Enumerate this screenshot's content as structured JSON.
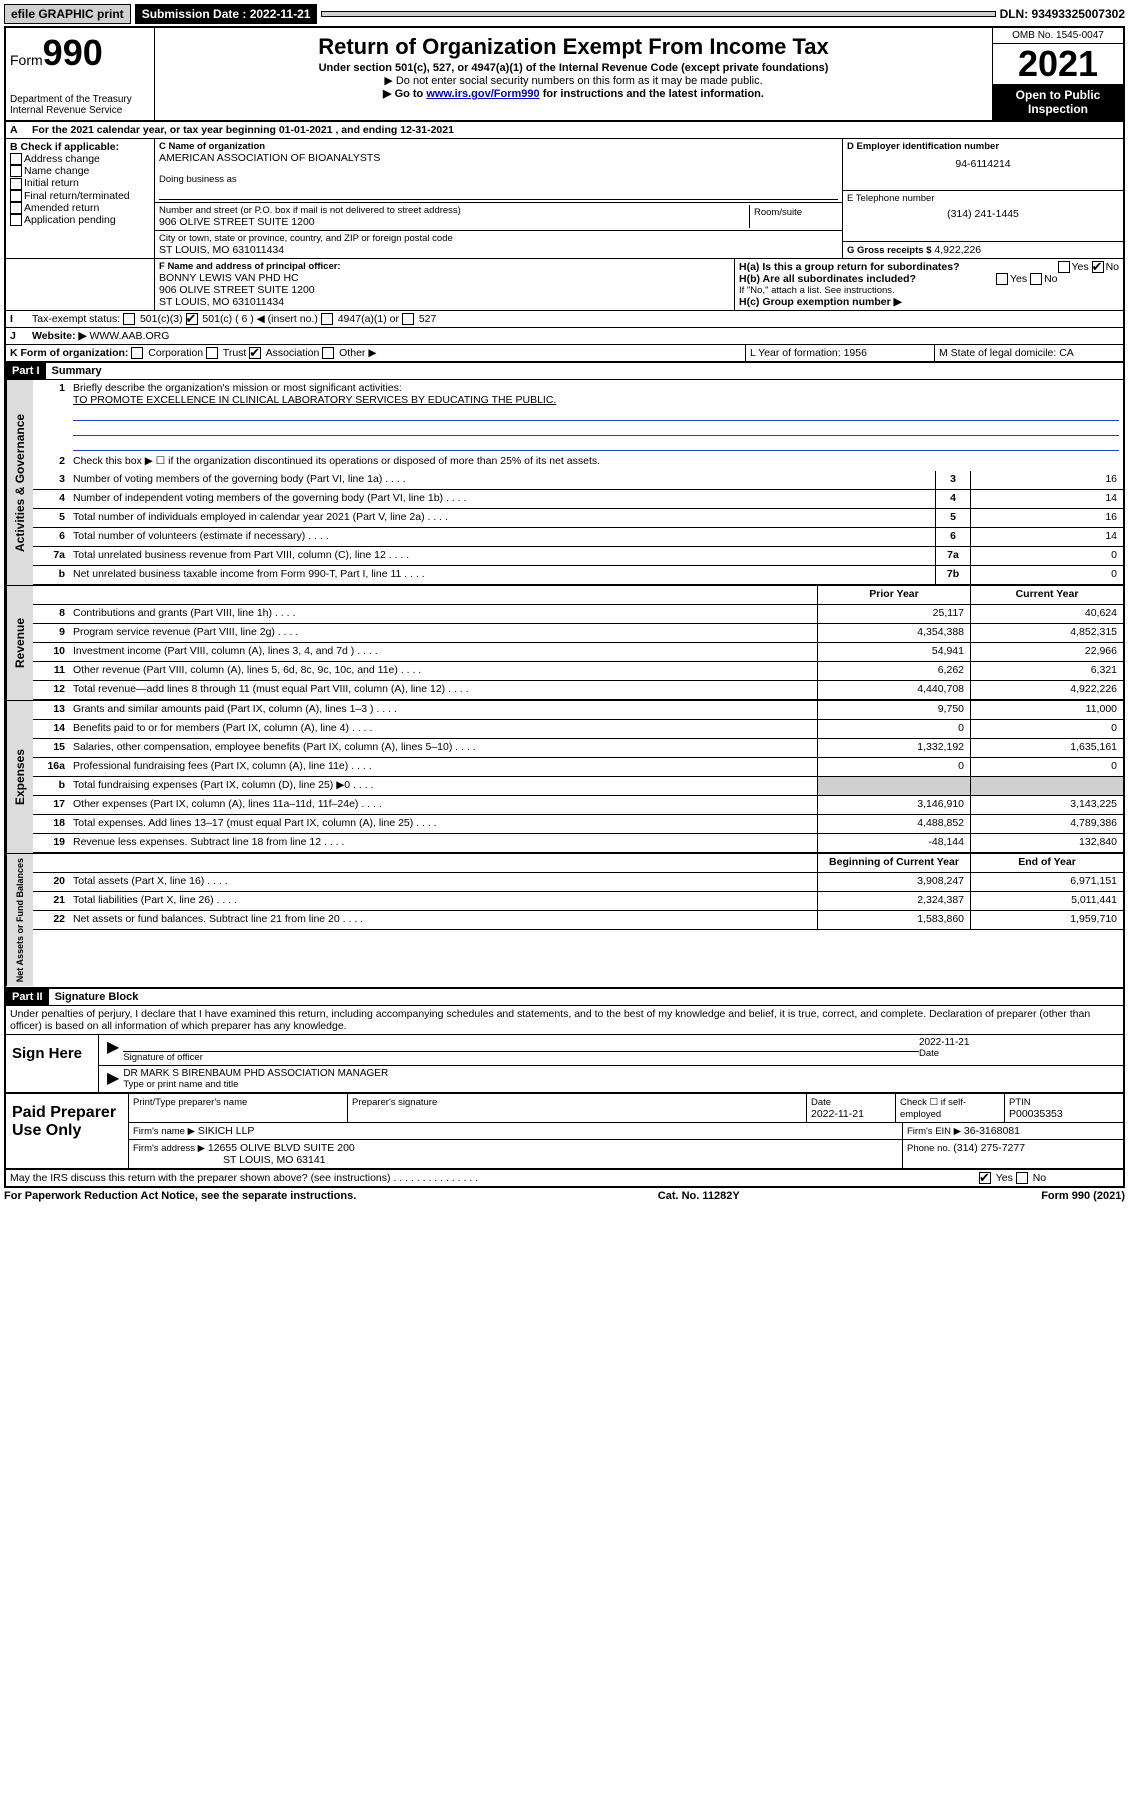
{
  "topbar": {
    "efile": "efile GRAPHIC print",
    "submission_label": "Submission Date : 2022-11-21",
    "dln": "DLN: 93493325007302"
  },
  "header": {
    "form_label": "Form",
    "form_number": "990",
    "dept": "Department of the Treasury",
    "irs": "Internal Revenue Service",
    "title": "Return of Organization Exempt From Income Tax",
    "subtitle": "Under section 501(c), 527, or 4947(a)(1) of the Internal Revenue Code (except private foundations)",
    "note1": "▶ Do not enter social security numbers on this form as it may be made public.",
    "note2_pre": "▶ Go to ",
    "note2_link": "www.irs.gov/Form990",
    "note2_post": " for instructions and the latest information.",
    "omb": "OMB No. 1545-0047",
    "year": "2021",
    "inspection": "Open to Public Inspection"
  },
  "period": {
    "text": "For the 2021 calendar year, or tax year beginning 01-01-2021   , and ending 12-31-2021"
  },
  "sectionB": {
    "label": "B Check if applicable:",
    "items": [
      "Address change",
      "Name change",
      "Initial return",
      "Final return/terminated",
      "Amended return",
      "Application pending"
    ],
    "c_label": "C Name of organization",
    "org_name": "AMERICAN ASSOCIATION OF BIOANALYSTS",
    "dba": "Doing business as",
    "street_label": "Number and street (or P.O. box if mail is not delivered to street address)",
    "room_label": "Room/suite",
    "street": "906 OLIVE STREET SUITE 1200",
    "city_label": "City or town, state or province, country, and ZIP or foreign postal code",
    "city": "ST LOUIS, MO  631011434",
    "d_label": "D Employer identification number",
    "ein": "94-6114214",
    "e_label": "E Telephone number",
    "phone": "(314) 241-1445",
    "g_label": "G Gross receipts $",
    "gross": "4,922,226"
  },
  "sectionF": {
    "f_label": "F Name and address of principal officer:",
    "officer": "BONNY LEWIS VAN PHD HC",
    "addr1": "906 OLIVE STREET SUITE 1200",
    "addr2": "ST LOUIS, MO  631011434",
    "ha": "H(a)  Is this a group return for subordinates?",
    "hb": "H(b)  Are all subordinates included?",
    "hb_note": "If \"No,\" attach a list. See instructions.",
    "hc": "H(c)  Group exemption number ▶"
  },
  "sectionI": {
    "label": "Tax-exempt status:",
    "opt1": "501(c)(3)",
    "opt2": "501(c) ( 6 ) ◀ (insert no.)",
    "opt3": "4947(a)(1) or",
    "opt4": "527"
  },
  "sectionJ": {
    "label": "Website: ▶",
    "value": "WWW.AAB.ORG"
  },
  "sectionK": {
    "label": "K Form of organization:",
    "opts": [
      "Corporation",
      "Trust",
      "Association",
      "Other ▶"
    ],
    "l_label": "L Year of formation: 1956",
    "m_label": "M State of legal domicile: CA"
  },
  "part1": {
    "header": "Part I",
    "title": "Summary",
    "l1_label": "Briefly describe the organization's mission or most significant activities:",
    "l1_text": "TO PROMOTE EXCELLENCE IN CLINICAL LABORATORY SERVICES BY EDUCATING THE PUBLIC.",
    "l2": "Check this box ▶ ☐  if the organization discontinued its operations or disposed of more than 25% of its net assets.",
    "rows_gov": [
      {
        "n": "3",
        "d": "Number of voting members of the governing body (Part VI, line 1a)",
        "c": "3",
        "v": "16"
      },
      {
        "n": "4",
        "d": "Number of independent voting members of the governing body (Part VI, line 1b)",
        "c": "4",
        "v": "14"
      },
      {
        "n": "5",
        "d": "Total number of individuals employed in calendar year 2021 (Part V, line 2a)",
        "c": "5",
        "v": "16"
      },
      {
        "n": "6",
        "d": "Total number of volunteers (estimate if necessary)",
        "c": "6",
        "v": "14"
      },
      {
        "n": "7a",
        "d": "Total unrelated business revenue from Part VIII, column (C), line 12",
        "c": "7a",
        "v": "0"
      },
      {
        "n": "b",
        "d": "Net unrelated business taxable income from Form 990-T, Part I, line 11",
        "c": "7b",
        "v": "0"
      }
    ],
    "col_prior": "Prior Year",
    "col_current": "Current Year",
    "rows_rev": [
      {
        "n": "8",
        "d": "Contributions and grants (Part VIII, line 1h)",
        "p": "25,117",
        "c": "40,624"
      },
      {
        "n": "9",
        "d": "Program service revenue (Part VIII, line 2g)",
        "p": "4,354,388",
        "c": "4,852,315"
      },
      {
        "n": "10",
        "d": "Investment income (Part VIII, column (A), lines 3, 4, and 7d )",
        "p": "54,941",
        "c": "22,966"
      },
      {
        "n": "11",
        "d": "Other revenue (Part VIII, column (A), lines 5, 6d, 8c, 9c, 10c, and 11e)",
        "p": "6,262",
        "c": "6,321"
      },
      {
        "n": "12",
        "d": "Total revenue—add lines 8 through 11 (must equal Part VIII, column (A), line 12)",
        "p": "4,440,708",
        "c": "4,922,226"
      }
    ],
    "rows_exp": [
      {
        "n": "13",
        "d": "Grants and similar amounts paid (Part IX, column (A), lines 1–3 )",
        "p": "9,750",
        "c": "11,000"
      },
      {
        "n": "14",
        "d": "Benefits paid to or for members (Part IX, column (A), line 4)",
        "p": "0",
        "c": "0"
      },
      {
        "n": "15",
        "d": "Salaries, other compensation, employee benefits (Part IX, column (A), lines 5–10)",
        "p": "1,332,192",
        "c": "1,635,161"
      },
      {
        "n": "16a",
        "d": "Professional fundraising fees (Part IX, column (A), line 11e)",
        "p": "0",
        "c": "0"
      },
      {
        "n": "b",
        "d": "Total fundraising expenses (Part IX, column (D), line 25) ▶0",
        "p": "",
        "c": "",
        "grey": true
      },
      {
        "n": "17",
        "d": "Other expenses (Part IX, column (A), lines 11a–11d, 11f–24e)",
        "p": "3,146,910",
        "c": "3,143,225"
      },
      {
        "n": "18",
        "d": "Total expenses. Add lines 13–17 (must equal Part IX, column (A), line 25)",
        "p": "4,488,852",
        "c": "4,789,386"
      },
      {
        "n": "19",
        "d": "Revenue less expenses. Subtract line 18 from line 12",
        "p": "-48,144",
        "c": "132,840"
      }
    ],
    "col_begin": "Beginning of Current Year",
    "col_end": "End of Year",
    "rows_net": [
      {
        "n": "20",
        "d": "Total assets (Part X, line 16)",
        "p": "3,908,247",
        "c": "6,971,151"
      },
      {
        "n": "21",
        "d": "Total liabilities (Part X, line 26)",
        "p": "2,324,387",
        "c": "5,011,441"
      },
      {
        "n": "22",
        "d": "Net assets or fund balances. Subtract line 21 from line 20",
        "p": "1,583,860",
        "c": "1,959,710"
      }
    ],
    "vtab_gov": "Activities & Governance",
    "vtab_rev": "Revenue",
    "vtab_exp": "Expenses",
    "vtab_net": "Net Assets or Fund Balances"
  },
  "part2": {
    "header": "Part II",
    "title": "Signature Block",
    "perjury": "Under penalties of perjury, I declare that I have examined this return, including accompanying schedules and statements, and to the best of my knowledge and belief, it is true, correct, and complete. Declaration of preparer (other than officer) is based on all information of which preparer has any knowledge.",
    "sign_here": "Sign Here",
    "sig_officer": "Signature of officer",
    "sig_date": "2022-11-21",
    "date_lbl": "Date",
    "officer_name": "DR MARK S BIRENBAUM PHD  ASSOCIATION MANAGER",
    "type_name": "Type or print name and title",
    "paid_prep": "Paid Preparer Use Only",
    "prep_name_lbl": "Print/Type preparer's name",
    "prep_sig_lbl": "Preparer's signature",
    "prep_date_lbl": "Date",
    "prep_date": "2022-11-21",
    "check_self": "Check ☐ if self-employed",
    "ptin_lbl": "PTIN",
    "ptin": "P00035353",
    "firm_name_lbl": "Firm's name    ▶",
    "firm_name": "SIKICH LLP",
    "firm_ein_lbl": "Firm's EIN ▶",
    "firm_ein": "36-3168081",
    "firm_addr_lbl": "Firm's address ▶",
    "firm_addr1": "12655 OLIVE BLVD SUITE 200",
    "firm_addr2": "ST LOUIS, MO  63141",
    "firm_phone_lbl": "Phone no.",
    "firm_phone": "(314) 275-7277",
    "discuss": "May the IRS discuss this return with the preparer shown above? (see instructions)"
  },
  "footer": {
    "left": "For Paperwork Reduction Act Notice, see the separate instructions.",
    "mid": "Cat. No. 11282Y",
    "right": "Form 990 (2021)"
  },
  "yesno": {
    "yes": "Yes",
    "no": "No"
  }
}
